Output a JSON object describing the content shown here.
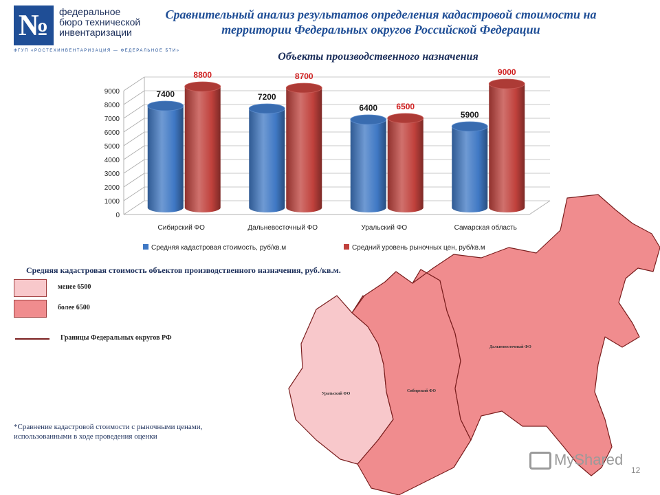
{
  "logo": {
    "glyph": "№",
    "name": "федеральное\nбюро технической\nинвентаризации",
    "tagline": "ФГУП «РОСТЕХИНВЕНТАРИЗАЦИЯ — ФЕДЕРАЛЬНОЕ БТИ»",
    "color": "#1f4e96"
  },
  "header": {
    "title": "Сравнительный анализ результатов определения кадастровой стоимости на территории Федеральных округов Российской Федерации"
  },
  "chart_data": {
    "type": "bar",
    "title": "Объекты производственного назначения",
    "categories": [
      "Сибирский ФО",
      "Дальневосточный ФО",
      "Уральский ФО",
      "Самарская область"
    ],
    "series": [
      {
        "name": "Средняя кадастровая стоимость, руб/кв.м",
        "values": [
          7400,
          7200,
          6400,
          5900
        ],
        "color": "#3f78c4"
      },
      {
        "name": "Средний уровень рыночных цен, руб/кв.м",
        "values": [
          8800,
          8700,
          6500,
          9000
        ],
        "color": "#c0413c"
      }
    ],
    "ylim": [
      0,
      9000
    ],
    "yticks": [
      0,
      1000,
      2000,
      3000,
      4000,
      5000,
      6000,
      7000,
      8000,
      9000
    ],
    "grid": true,
    "legend": "bottom",
    "label_colors": [
      "#1a1a1a",
      "#d02020"
    ]
  },
  "map_legend": {
    "title": "Средняя кадастровая стоимость объектов производственного назначения, руб./кв.м.",
    "low_label": "менее 6500",
    "high_label": "более 6500",
    "low_color": "#f8c8cb",
    "high_color": "#f08c8e",
    "border_label": "Границы Федеральных округов РФ",
    "border_color": "#7a1e1e"
  },
  "map": {
    "regions": [
      {
        "label": "Уральский ФО",
        "level": "low"
      },
      {
        "label": "Сибирский ФО",
        "level": "high"
      },
      {
        "label": "Дальневосточный ФО",
        "level": "high"
      }
    ]
  },
  "footnote": "*Сравнение кадастровой стоимости с рыночными ценами,\n использованными в ходе проведения оценки",
  "watermark": "MyShared",
  "page_number": "12"
}
